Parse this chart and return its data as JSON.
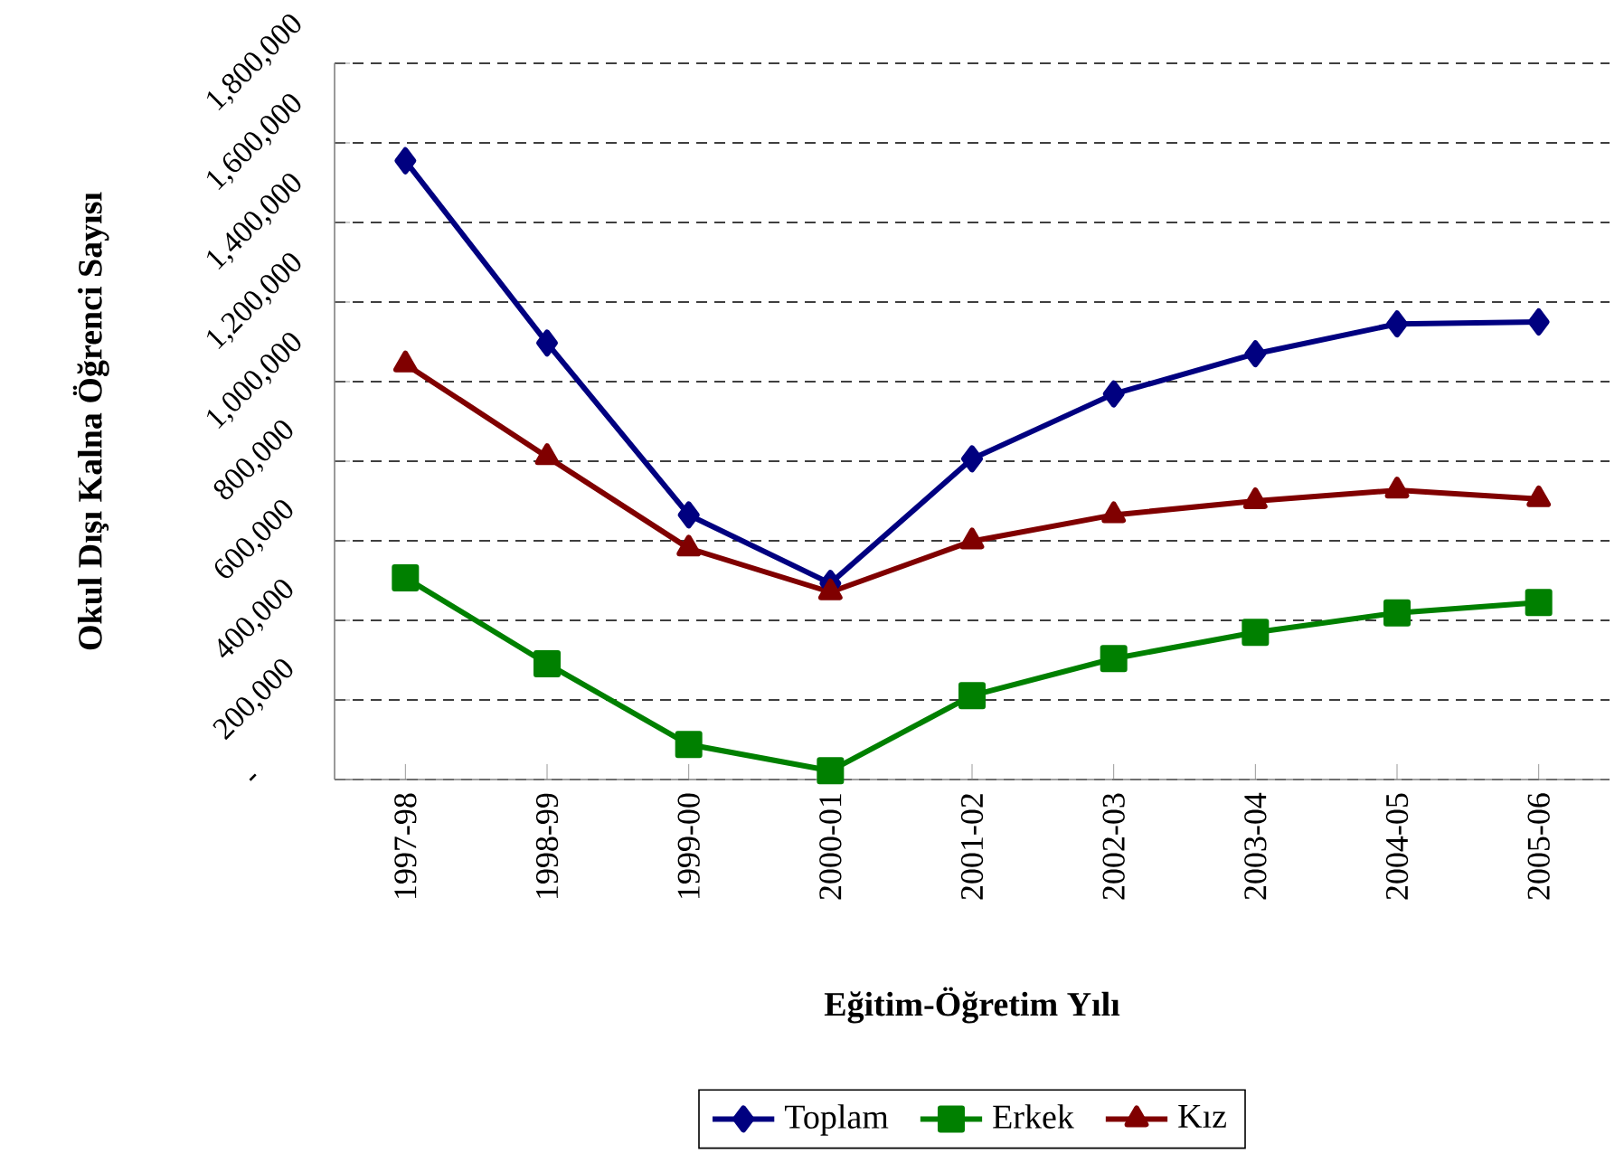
{
  "chart_data": {
    "type": "line",
    "xlabel": "Eğitim-Öğretim Yılı",
    "ylabel": "Okul Dışı Kalna Öğrenci Sayısı",
    "categories": [
      "1997-98",
      "1998-99",
      "1999-00",
      "2000-01",
      "2001-02",
      "2002-03",
      "2003-04",
      "2004-05",
      "2005-06"
    ],
    "series": [
      {
        "name": "Toplam",
        "color": "#000080",
        "marker": "diamond",
        "values": [
          1555000,
          1097000,
          665000,
          493000,
          806000,
          969000,
          1070000,
          1145000,
          1150000
        ]
      },
      {
        "name": "Erkek",
        "color": "#008000",
        "marker": "square",
        "values": [
          507000,
          291000,
          88000,
          22000,
          211000,
          304000,
          370000,
          419000,
          445000
        ]
      },
      {
        "name": "Kız",
        "color": "#800000",
        "marker": "triangle",
        "values": [
          1044000,
          811000,
          581000,
          471000,
          599000,
          665000,
          700000,
          727000,
          705000
        ]
      }
    ],
    "ylim": [
      0,
      1800000
    ],
    "yticks": [
      {
        "value": 0,
        "label": "-"
      },
      {
        "value": 200000,
        "label": "200,000"
      },
      {
        "value": 400000,
        "label": "400,000"
      },
      {
        "value": 600000,
        "label": "600,000"
      },
      {
        "value": 800000,
        "label": "800,000"
      },
      {
        "value": 1000000,
        "label": "1,000,000"
      },
      {
        "value": 1200000,
        "label": "1,200,000"
      },
      {
        "value": 1400000,
        "label": "1,400,000"
      },
      {
        "value": 1600000,
        "label": "1,600,000"
      },
      {
        "value": 1800000,
        "label": "1,800,000"
      }
    ],
    "grid": "y",
    "legend": "bottom",
    "line_style": "solid"
  }
}
